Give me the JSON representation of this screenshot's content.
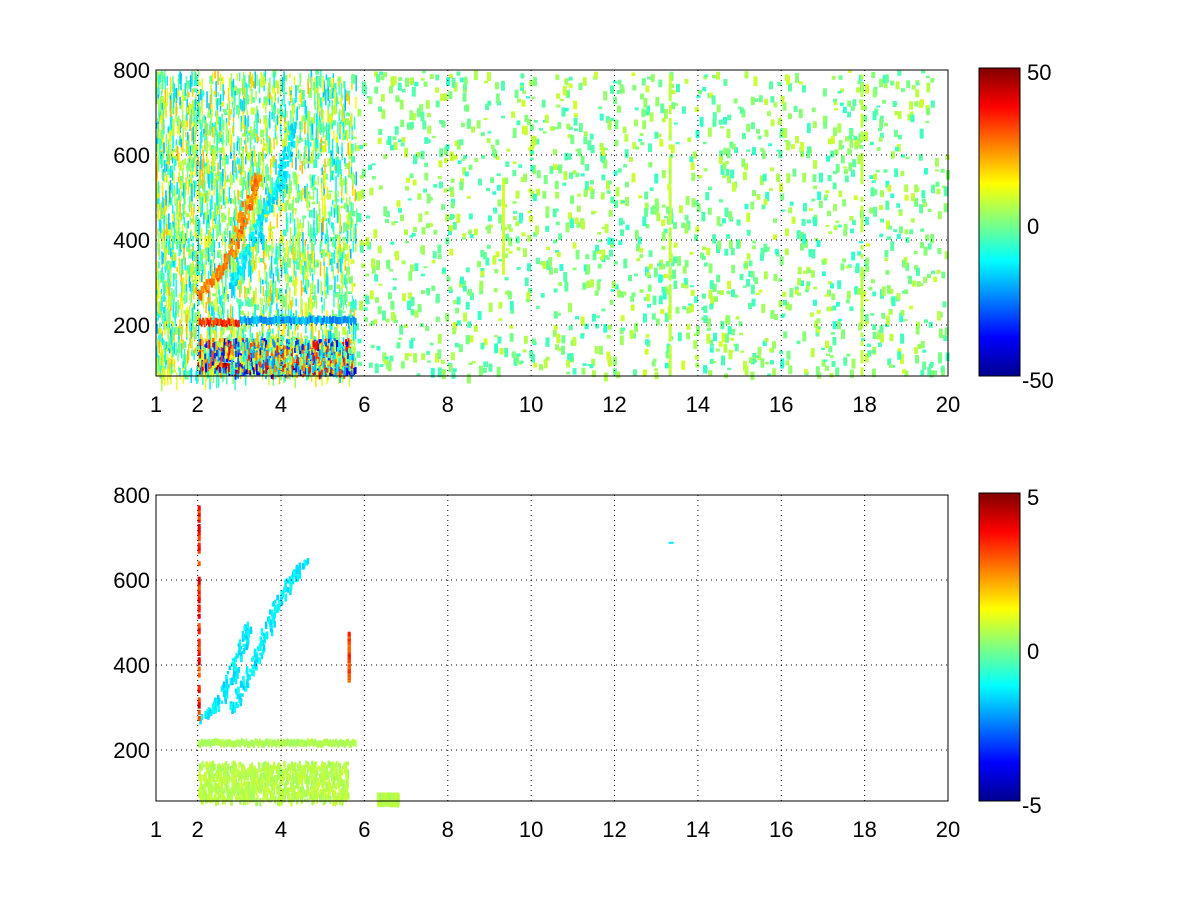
{
  "colormap": [
    "#00008f",
    "#0000ff",
    "#0080ff",
    "#00ffff",
    "#80ff80",
    "#ffff00",
    "#ff8000",
    "#ff0000",
    "#800000"
  ],
  "grid": "dotted",
  "chart_data": [
    {
      "type": "heatmap",
      "title": "",
      "xlabel": "",
      "ylabel": "",
      "xlim": [
        1,
        20
      ],
      "ylim": [
        80,
        800
      ],
      "x_ticks": [
        "1",
        "2",
        "4",
        "6",
        "8",
        "10",
        "12",
        "14",
        "16",
        "18",
        "20"
      ],
      "y_ticks": [
        "200",
        "400",
        "600",
        "800"
      ],
      "colorbar": {
        "range": [
          -50,
          50
        ],
        "ticks": [
          "50",
          "0",
          "-50"
        ]
      },
      "features": [
        {
          "kind": "sparse-speckle",
          "x": [
            1.05,
            20
          ],
          "y": [
            80,
            800
          ],
          "values": [
            -8,
            8
          ]
        },
        {
          "kind": "dense-vertical-stripes",
          "x": [
            1,
            5.8
          ],
          "y": [
            80,
            800
          ],
          "values": [
            -20,
            20
          ]
        },
        {
          "kind": "curved-band",
          "points": [
            [
              2.0,
              280
            ],
            [
              2.4,
              320
            ],
            [
              2.8,
              380
            ],
            [
              3.0,
              440
            ],
            [
              3.2,
              500
            ],
            [
              3.4,
              560
            ]
          ],
          "value": 25
        },
        {
          "kind": "curved-band",
          "points": [
            [
              2.8,
              300
            ],
            [
              3.1,
              370
            ],
            [
              3.5,
              450
            ],
            [
              3.9,
              530
            ],
            [
              4.1,
              600
            ],
            [
              4.3,
              680
            ]
          ],
          "value": -15
        },
        {
          "kind": "horizontal-band",
          "x": [
            2.0,
            3.0
          ],
          "y": 205,
          "value": 35
        },
        {
          "kind": "horizontal-band",
          "x": [
            3.0,
            5.8
          ],
          "y": 210,
          "value": -25
        },
        {
          "kind": "horizontal-band",
          "x": [
            2.0,
            4.7
          ],
          "y": 100,
          "value": 50
        },
        {
          "kind": "horizontal-band",
          "x": [
            2.7,
            5.8
          ],
          "y": 90,
          "value": -50
        },
        {
          "kind": "blotch",
          "x": [
            2.0,
            5.7
          ],
          "y": [
            90,
            170
          ],
          "values": [
            -40,
            40
          ]
        },
        {
          "kind": "vertical-line",
          "x": 9.3,
          "y": [
            330,
            550
          ],
          "value": 8
        },
        {
          "kind": "vertical-line",
          "x": 13.3,
          "y": [
            80,
            800
          ],
          "value": 6
        },
        {
          "kind": "vertical-line",
          "x": 17.9,
          "y": [
            80,
            800
          ],
          "value": 6
        }
      ]
    },
    {
      "type": "heatmap",
      "title": "",
      "xlabel": "",
      "ylabel": "",
      "xlim": [
        1,
        20
      ],
      "ylim": [
        80,
        800
      ],
      "x_ticks": [
        "1",
        "2",
        "4",
        "6",
        "8",
        "10",
        "12",
        "14",
        "16",
        "18",
        "20"
      ],
      "y_ticks": [
        "200",
        "400",
        "600",
        "800"
      ],
      "colorbar": {
        "range": [
          -5,
          5
        ],
        "ticks": [
          "5",
          "0",
          "-5"
        ]
      },
      "features": [
        {
          "kind": "curved-band",
          "points": [
            [
              2.1,
              280
            ],
            [
              2.5,
              320
            ],
            [
              2.8,
              380
            ],
            [
              3.0,
              440
            ],
            [
              3.2,
              500
            ]
          ],
          "value": -1.5
        },
        {
          "kind": "curved-band",
          "points": [
            [
              2.8,
              300
            ],
            [
              3.2,
              380
            ],
            [
              3.5,
              450
            ],
            [
              3.8,
              530
            ],
            [
              4.2,
              600
            ],
            [
              4.6,
              650
            ]
          ],
          "value": -1.5
        },
        {
          "kind": "horizontal-band",
          "x": [
            2.0,
            5.8
          ],
          "y": 215,
          "value": 0.5
        },
        {
          "kind": "blotch",
          "x": [
            2.0,
            5.6
          ],
          "y": [
            85,
            175
          ],
          "values": [
            0.3,
            0.8
          ]
        },
        {
          "kind": "blotch",
          "x": [
            6.3,
            6.8
          ],
          "y": [
            85,
            100
          ],
          "values": [
            0.3,
            0.8
          ]
        },
        {
          "kind": "vertical-line",
          "x": 2.0,
          "y": [
            280,
            790
          ],
          "value": 3.5
        },
        {
          "kind": "vertical-line",
          "x": 5.6,
          "y": [
            370,
            480
          ],
          "value": 3
        },
        {
          "kind": "dot",
          "x": 13.3,
          "y": 690,
          "value": -1.5
        }
      ]
    }
  ]
}
